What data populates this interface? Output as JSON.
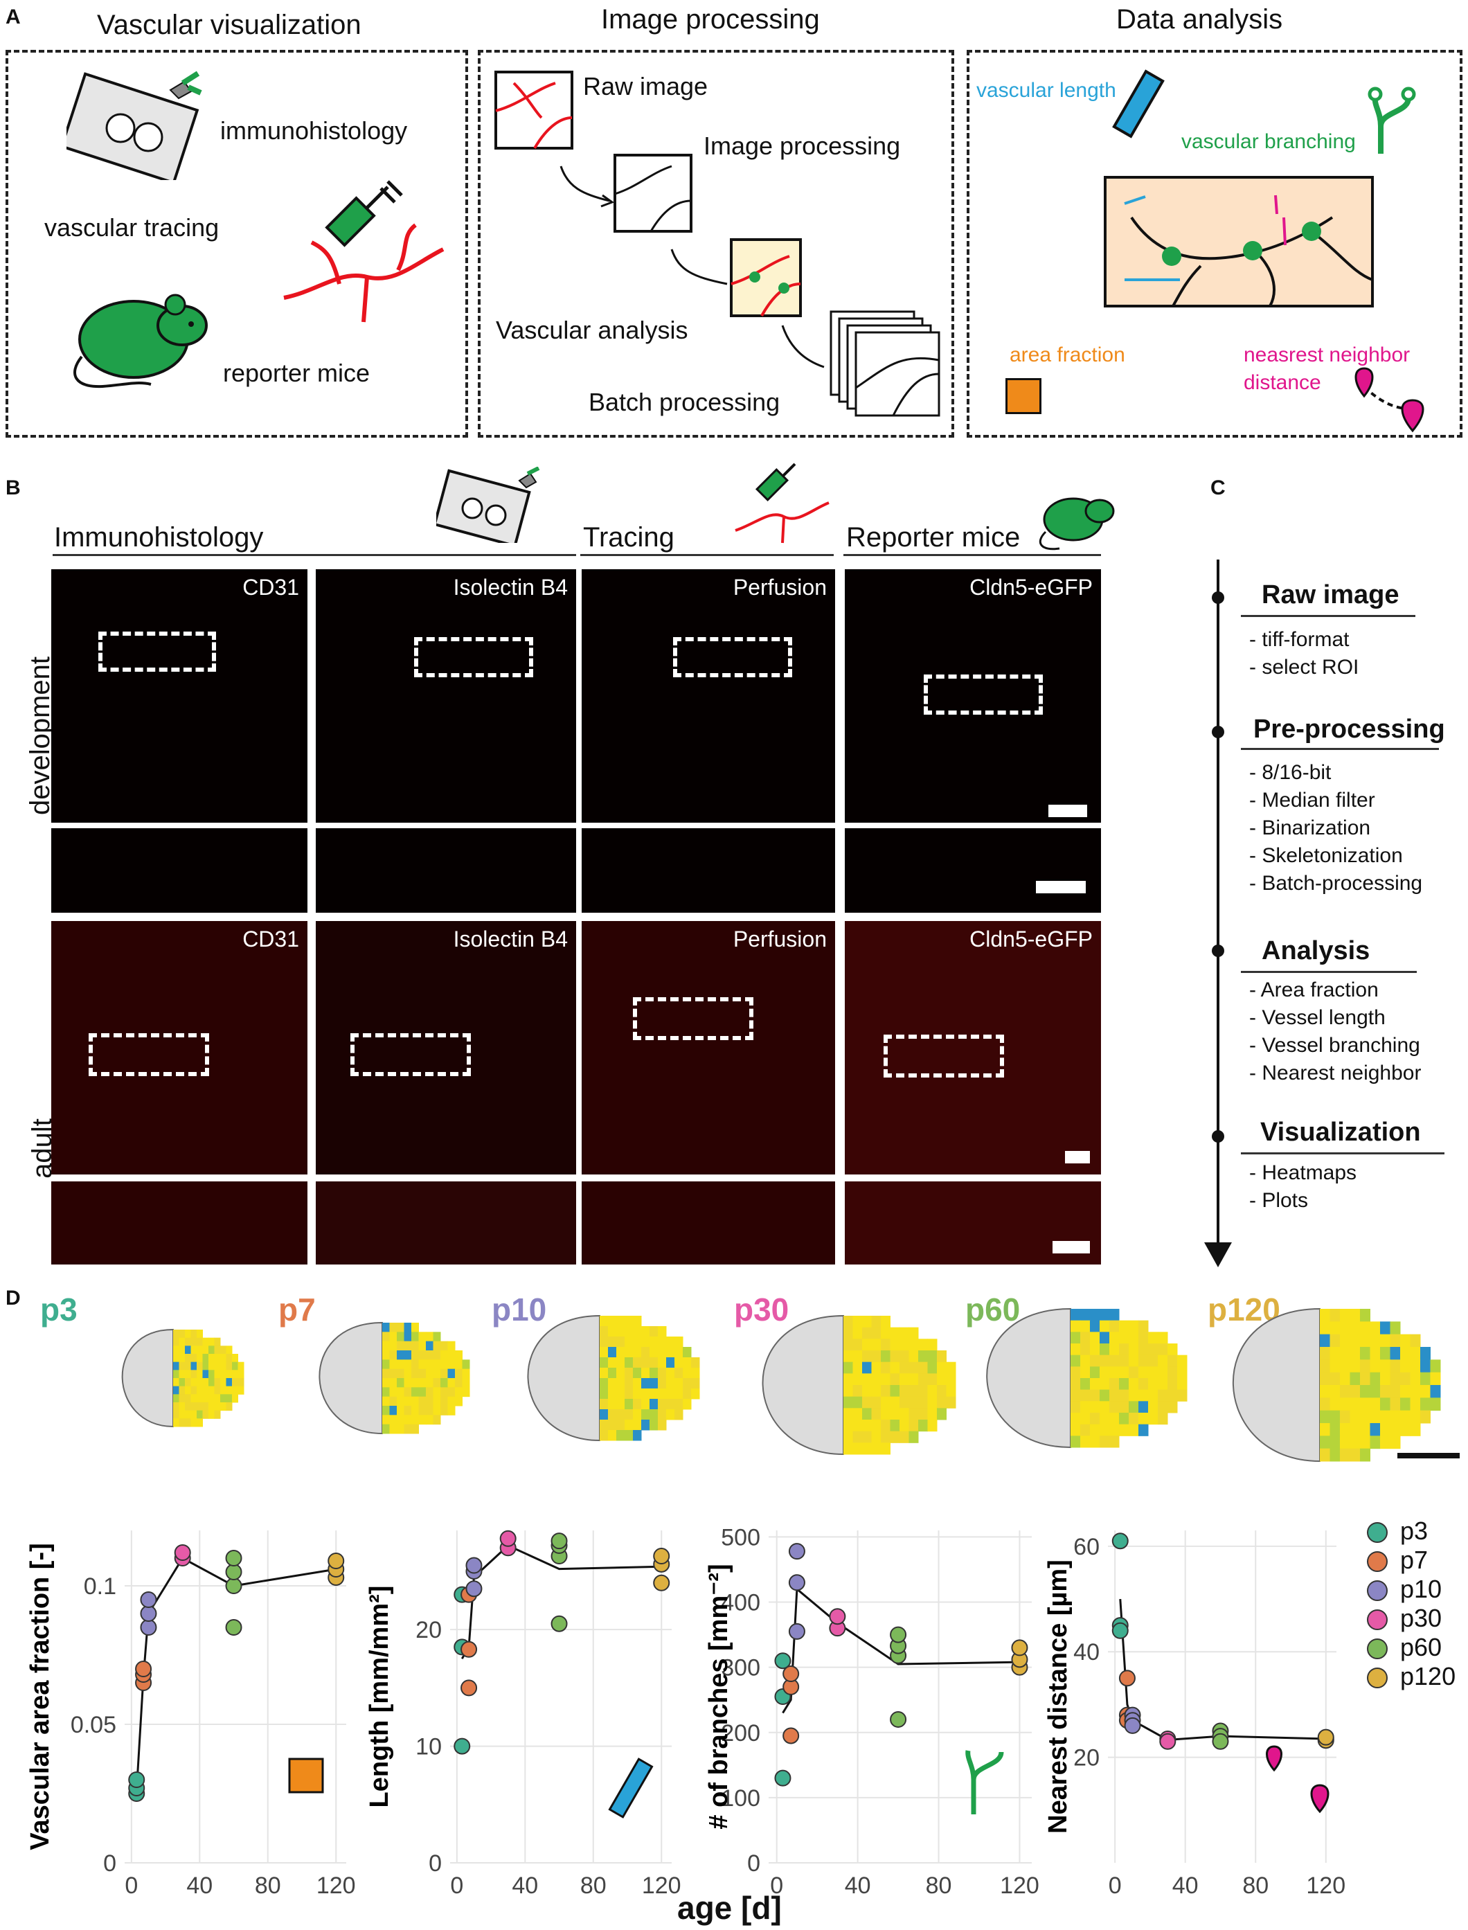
{
  "panels": {
    "A": "A",
    "B": "B",
    "C": "C",
    "D": "D"
  },
  "panelA": {
    "col1_title": "Vascular visualization",
    "col2_title": "Image processing",
    "col3_title": "Data analysis",
    "immunohistology": "immunohistology",
    "vascular_tracing": "vascular tracing",
    "reporter_mice": "reporter mice",
    "raw_image": "Raw image",
    "image_processing": "Image processing",
    "vascular_analysis": "Vascular analysis",
    "batch_processing": "Batch processing",
    "vascular_length": "vascular length",
    "vascular_branching": "vascular branching",
    "area_fraction": "area fraction",
    "nearest_neighbor_l1": "neasrest neighbor",
    "nearest_neighbor_l2": "distance",
    "colors": {
      "blue": "#29a3d8",
      "green": "#1fa04a",
      "orange": "#ef8a1a",
      "magenta": "#e0168c",
      "red": "#e8141e"
    }
  },
  "panelB": {
    "headers": [
      "Immunohistology",
      "Tracing",
      "Reporter mice"
    ],
    "row_labels": [
      "development",
      "adult"
    ],
    "stains": [
      "CD31",
      "Isolectin B4",
      "Perfusion",
      "Cldn5-eGFP"
    ]
  },
  "panelC": {
    "steps": [
      {
        "title": "Raw image",
        "items": "- tiff-format\n- select ROI"
      },
      {
        "title": "Pre-processing",
        "items": "- 8/16-bit\n- Median filter\n- Binarization\n- Skeletonization\n- Batch-processing"
      },
      {
        "title": "Analysis",
        "items": "- Area fraction\n- Vessel length\n- Vessel branching\n- Nearest neighbor"
      },
      {
        "title": "Visualization",
        "items": "- Heatmaps\n- Plots"
      }
    ]
  },
  "panelD": {
    "ages": [
      "p3",
      "p7",
      "p10",
      "p30",
      "p60",
      "p120"
    ],
    "age_colors": [
      "#3fae8f",
      "#e07a4a",
      "#8b86c4",
      "#e55aa7",
      "#7cb85a",
      "#ddb040"
    ],
    "xlabel": "age  [d]",
    "legend": [
      "p3",
      "p7",
      "p10",
      "p30",
      "p60",
      "p120"
    ]
  },
  "chart_data": [
    {
      "type": "scatter",
      "ylabel": "Vascular area fraction [-]",
      "xticks": [
        "0",
        "40",
        "80",
        "120"
      ],
      "yticks": [
        "0",
        "0.05",
        "0.1"
      ],
      "ylim": [
        0,
        0.12
      ],
      "xlim": [
        -4,
        126
      ],
      "points": [
        [
          3,
          0.025
        ],
        [
          3,
          0.027
        ],
        [
          3,
          0.03
        ],
        [
          7,
          0.065
        ],
        [
          7,
          0.068
        ],
        [
          7,
          0.07
        ],
        [
          10,
          0.085
        ],
        [
          10,
          0.09
        ],
        [
          10,
          0.095
        ],
        [
          30,
          0.11
        ],
        [
          30,
          0.112
        ],
        [
          60,
          0.085
        ],
        [
          60,
          0.1
        ],
        [
          60,
          0.105
        ],
        [
          60,
          0.11
        ],
        [
          120,
          0.103
        ],
        [
          120,
          0.106
        ],
        [
          120,
          0.109
        ]
      ],
      "point_groups": [
        0,
        0,
        0,
        1,
        1,
        1,
        2,
        2,
        2,
        3,
        3,
        4,
        4,
        4,
        4,
        5,
        5,
        5
      ],
      "mean_line": [
        [
          3,
          0.026
        ],
        [
          7,
          0.067
        ],
        [
          10,
          0.09
        ],
        [
          30,
          0.11
        ],
        [
          60,
          0.1
        ],
        [
          120,
          0.106
        ]
      ]
    },
    {
      "type": "scatter",
      "ylabel": "Length [mm/mm²]",
      "xticks": [
        "0",
        "40",
        "80",
        "120"
      ],
      "yticks": [
        "0",
        "10",
        "20"
      ],
      "ylim": [
        0,
        28.5
      ],
      "xlim": [
        -4,
        126
      ],
      "points": [
        [
          3,
          10
        ],
        [
          3,
          18.5
        ],
        [
          3,
          23
        ],
        [
          7,
          15
        ],
        [
          7,
          18.3
        ],
        [
          7,
          23
        ],
        [
          10,
          23.5
        ],
        [
          10,
          25
        ],
        [
          10,
          25.5
        ],
        [
          30,
          27
        ],
        [
          30,
          27.8
        ],
        [
          60,
          20.5
        ],
        [
          60,
          26.3
        ],
        [
          60,
          27.2
        ],
        [
          60,
          27.6
        ],
        [
          120,
          24
        ],
        [
          120,
          25.6
        ],
        [
          120,
          26.3
        ]
      ],
      "point_groups": [
        0,
        0,
        0,
        1,
        1,
        1,
        2,
        2,
        2,
        3,
        3,
        4,
        4,
        4,
        4,
        5,
        5,
        5
      ],
      "mean_line": [
        [
          3,
          17.5
        ],
        [
          7,
          18.5
        ],
        [
          10,
          24.5
        ],
        [
          30,
          27.2
        ],
        [
          60,
          25.2
        ],
        [
          120,
          25.4
        ]
      ]
    },
    {
      "type": "scatter",
      "ylabel": "# of branches [mm⁻²]",
      "xticks": [
        "0",
        "40",
        "80",
        "120"
      ],
      "yticks": [
        "0",
        "100",
        "200",
        "300",
        "400",
        "500"
      ],
      "ylim": [
        0,
        510
      ],
      "xlim": [
        -4,
        126
      ],
      "points": [
        [
          3,
          130
        ],
        [
          3,
          255
        ],
        [
          3,
          310
        ],
        [
          7,
          195
        ],
        [
          7,
          270
        ],
        [
          7,
          290
        ],
        [
          10,
          355
        ],
        [
          10,
          430
        ],
        [
          10,
          478
        ],
        [
          30,
          360
        ],
        [
          30,
          378
        ],
        [
          60,
          220
        ],
        [
          60,
          318
        ],
        [
          60,
          333
        ],
        [
          60,
          350
        ],
        [
          120,
          300
        ],
        [
          120,
          312
        ],
        [
          120,
          330
        ]
      ],
      "point_groups": [
        0,
        0,
        0,
        1,
        1,
        1,
        2,
        2,
        2,
        3,
        3,
        4,
        4,
        4,
        4,
        5,
        5,
        5
      ],
      "mean_line": [
        [
          3,
          230
        ],
        [
          7,
          250
        ],
        [
          10,
          420
        ],
        [
          30,
          368
        ],
        [
          60,
          305
        ],
        [
          120,
          308
        ]
      ]
    },
    {
      "type": "scatter",
      "ylabel": "Nearest distance [µm]",
      "xticks": [
        "0",
        "40",
        "80",
        "120"
      ],
      "yticks": [
        "20",
        "40",
        "60"
      ],
      "ylim": [
        0,
        63
      ],
      "xlim": [
        -4,
        126
      ],
      "points": [
        [
          3,
          61
        ],
        [
          3,
          45
        ],
        [
          3,
          44
        ],
        [
          7,
          35
        ],
        [
          7,
          28
        ],
        [
          7,
          27
        ],
        [
          10,
          28
        ],
        [
          10,
          27
        ],
        [
          10,
          26
        ],
        [
          30,
          23.5
        ],
        [
          30,
          23
        ],
        [
          60,
          25
        ],
        [
          60,
          24
        ],
        [
          60,
          23
        ],
        [
          120,
          23.5
        ],
        [
          120,
          23.2
        ],
        [
          120,
          23.8
        ]
      ],
      "point_groups": [
        0,
        0,
        0,
        1,
        1,
        1,
        2,
        2,
        2,
        3,
        3,
        4,
        4,
        4,
        5,
        5,
        5
      ],
      "mean_line": [
        [
          3,
          50
        ],
        [
          7,
          30
        ],
        [
          10,
          27
        ],
        [
          30,
          23.3
        ],
        [
          60,
          24
        ],
        [
          120,
          23.5
        ]
      ]
    }
  ]
}
